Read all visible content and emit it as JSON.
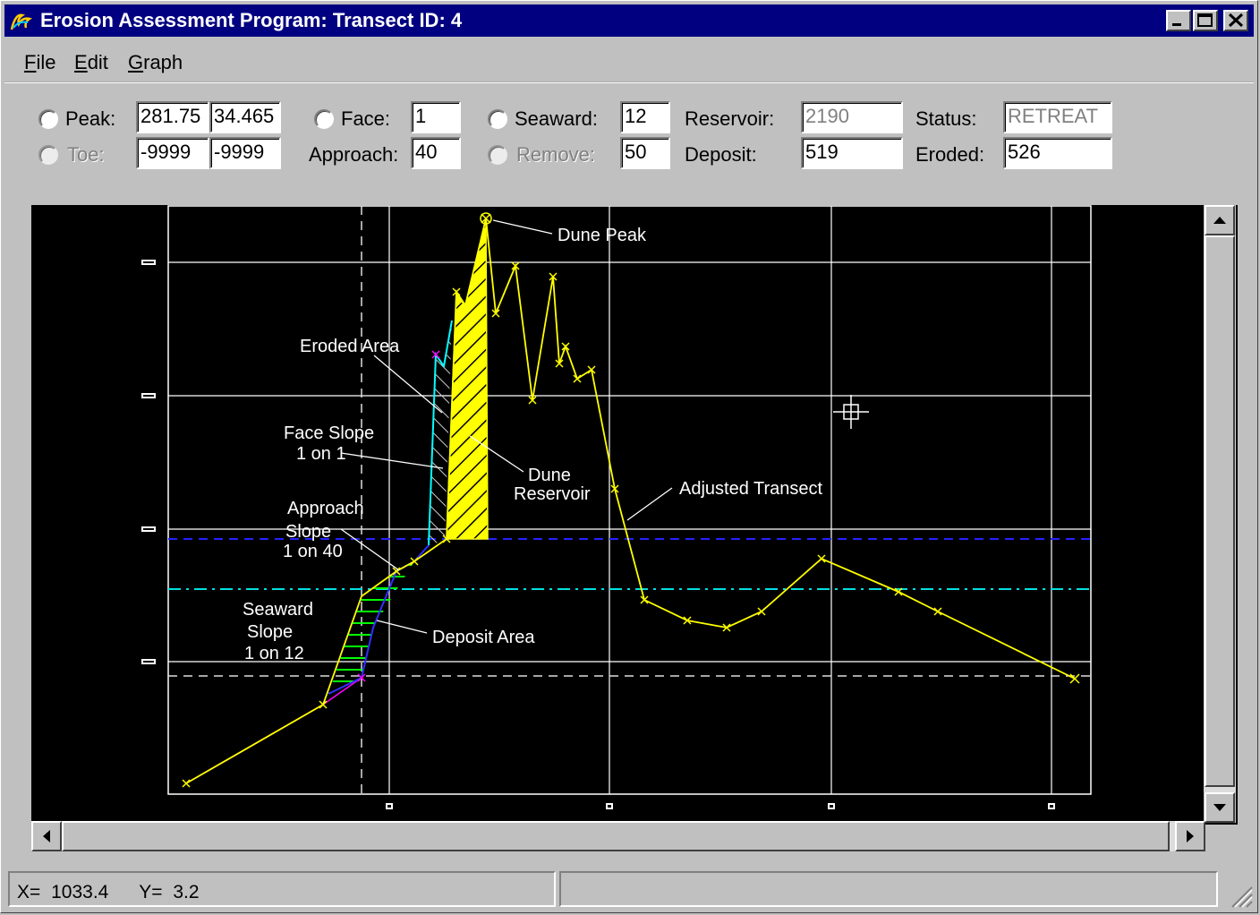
{
  "window": {
    "title": "Erosion Assessment Program: Transect ID: 4",
    "icon": "wave-app-icon",
    "controls": [
      "minimize",
      "maximize",
      "close"
    ]
  },
  "menu": [
    {
      "label": "File",
      "underline": "F"
    },
    {
      "label": "Edit",
      "underline": "E"
    },
    {
      "label": "Graph",
      "underline": "G"
    }
  ],
  "params": {
    "peak": {
      "label": "Peak:",
      "x": "281.75",
      "y": "34.465"
    },
    "toe": {
      "label": "Toe:",
      "x": "-9999",
      "y": "-9999"
    },
    "face": {
      "label": "Face:",
      "value": "1"
    },
    "approach": {
      "label": "Approach:",
      "value": "40"
    },
    "seaward": {
      "label": "Seaward:",
      "value": "12"
    },
    "remove": {
      "label": "Remove:",
      "value": "50"
    },
    "reservoir": {
      "label": "Reservoir:",
      "value": "2190"
    },
    "deposit": {
      "label": "Deposit:",
      "value": "519"
    },
    "status": {
      "label": "Status:",
      "value": "RETREAT"
    },
    "eroded": {
      "label": "Eroded:",
      "value": "526"
    }
  },
  "colors": {
    "adjusted_transect": "#ffff00",
    "original_transect": "#ff00ff",
    "eroded_edge": "#00ffff",
    "deposit_hatch": "#00ff00",
    "water_level_blue": "#2222ff",
    "water_level_cyan": "#00e0e0",
    "grid": "#ffffff"
  },
  "graph": {
    "annotations": {
      "dune_peak": "Dune Peak",
      "eroded_area": "Eroded Area",
      "face_slope_1": "Face Slope",
      "face_slope_2": "1 on 1",
      "dune_reservoir_1": "Dune",
      "dune_reservoir_2": "Reservoir",
      "adjusted_transect": "Adjusted Transect",
      "approach_slope_1": "Approach",
      "approach_slope_2": "Slope",
      "approach_slope_3": "1 on 40",
      "seaward_slope_1": "Seaward",
      "seaward_slope_2": "Slope",
      "seaward_slope_3": "1 on 12",
      "deposit_area": "Deposit Area"
    }
  },
  "status": {
    "x_label": "X=",
    "x_value": "1033.4",
    "y_label": "Y=",
    "y_value": "3.2"
  }
}
